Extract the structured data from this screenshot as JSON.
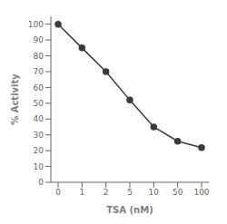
{
  "chart_data": {
    "type": "line",
    "categories": [
      "0",
      "1",
      "2",
      "5",
      "10",
      "50",
      "100"
    ],
    "values": [
      100,
      85,
      70,
      52,
      35,
      26,
      22
    ],
    "color": "#3a3a3a",
    "marker": "circle",
    "xlabel": "TSA (nM)",
    "ylabel": "% Activity",
    "ylim": [
      0,
      105
    ],
    "yticks": [
      0,
      10,
      20,
      30,
      40,
      50,
      60,
      70,
      80,
      90,
      100
    ],
    "grid": false
  }
}
